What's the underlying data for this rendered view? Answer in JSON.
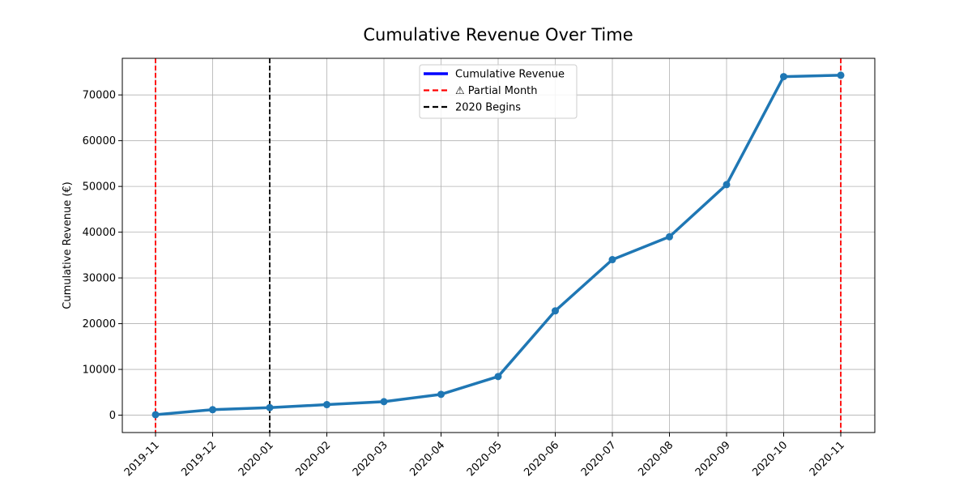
{
  "chart_data": {
    "type": "line",
    "title": "Cumulative Revenue Over Time",
    "xlabel": "",
    "ylabel": "Cumulative Revenue (€)",
    "x": [
      "2019-11",
      "2019-12",
      "2020-01",
      "2020-02",
      "2020-03",
      "2020-04",
      "2020-05",
      "2020-06",
      "2020-07",
      "2020-08",
      "2020-09",
      "2020-10",
      "2020-11"
    ],
    "series": [
      {
        "name": "Cumulative Revenue",
        "values": [
          100,
          1200,
          1650,
          2300,
          2950,
          4550,
          8450,
          22800,
          34000,
          39000,
          50400,
          74000,
          74300
        ],
        "color": "#1f77b4"
      }
    ],
    "ylim": [
      -3800,
      78000
    ],
    "yticks": [
      0,
      10000,
      20000,
      30000,
      40000,
      50000,
      60000,
      70000
    ],
    "grid": true,
    "legend_position": "top-center",
    "vlines": [
      {
        "x": "2019-11",
        "label": "⚠ Partial Month",
        "color": "#ff0000",
        "style": "dashed"
      },
      {
        "x": "2020-11",
        "label": "⚠ Partial Month",
        "color": "#ff0000",
        "style": "dashed"
      },
      {
        "x": "2020-01",
        "label": "2020 Begins",
        "color": "#000000",
        "style": "dashed"
      }
    ],
    "legend": [
      {
        "label": "Cumulative Revenue",
        "color": "#0000ff",
        "style": "solid"
      },
      {
        "label": "⚠ Partial Month",
        "color": "#ff0000",
        "style": "dashed"
      },
      {
        "label": "2020 Begins",
        "color": "#000000",
        "style": "dashed"
      }
    ]
  }
}
